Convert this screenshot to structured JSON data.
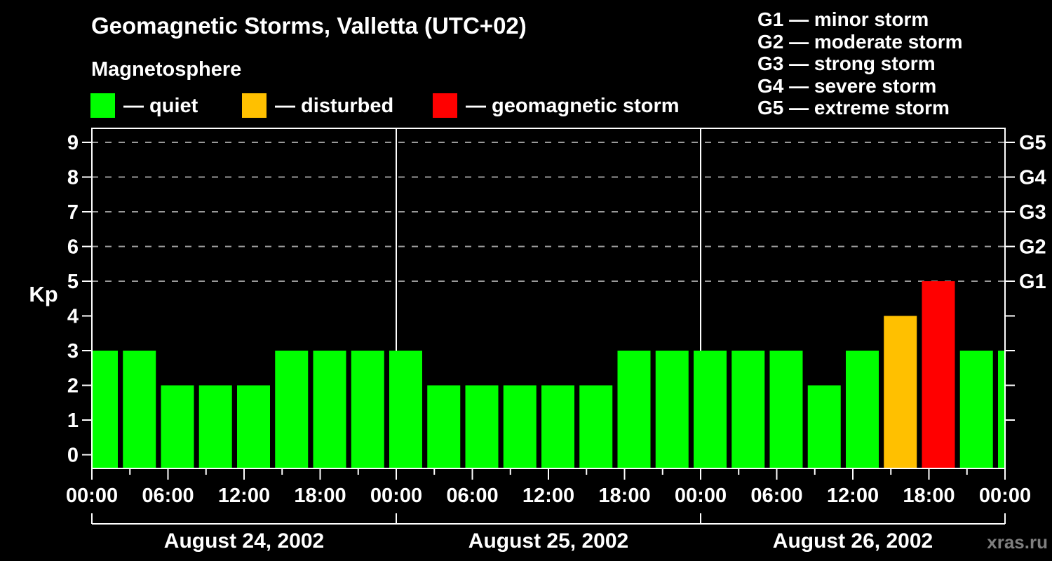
{
  "title": "Geomagnetic Storms, Valletta (UTC+02)",
  "legend": {
    "heading": "Magnetosphere",
    "items": [
      {
        "name": "quiet",
        "label": "— quiet",
        "color": "#00ff00"
      },
      {
        "name": "disturbed",
        "label": "— disturbed",
        "color": "#ffc000"
      },
      {
        "name": "storm",
        "label": "— geomagnetic storm",
        "color": "#ff0000"
      }
    ]
  },
  "g_legend": [
    "G1 — minor storm",
    "G2 — moderate storm",
    "G3 — strong storm",
    "G4 — severe storm",
    "G5 — extreme storm"
  ],
  "watermark": "xras.ru",
  "chart_data": {
    "type": "bar",
    "title": "Geomagnetic Storms, Valletta (UTC+02)",
    "xlabel": "",
    "ylabel": "Kp",
    "ylim": [
      0,
      9
    ],
    "yticks": [
      0,
      1,
      2,
      3,
      4,
      5,
      6,
      7,
      8,
      9
    ],
    "grid_dashed_at_kp": [
      5,
      6,
      7,
      8,
      9
    ],
    "right_axis_labels": [
      {
        "kp": 5,
        "label": "G1"
      },
      {
        "kp": 6,
        "label": "G2"
      },
      {
        "kp": 7,
        "label": "G3"
      },
      {
        "kp": 8,
        "label": "G4"
      },
      {
        "kp": 9,
        "label": "G5"
      }
    ],
    "hours_per_bar": 3,
    "time_tick_labels": [
      "00:00",
      "06:00",
      "12:00",
      "18:00"
    ],
    "days": [
      {
        "date": "August 24, 2002",
        "values": [
          3,
          3,
          2,
          2,
          2,
          3,
          3,
          3
        ]
      },
      {
        "date": "August 25, 2002",
        "values": [
          3,
          2,
          2,
          2,
          2,
          2,
          3,
          3
        ]
      },
      {
        "date": "August 26, 2002",
        "values": [
          3,
          3,
          3,
          2,
          3,
          4,
          5,
          3
        ]
      }
    ],
    "partial_next_bar_value": 3,
    "color_rules": {
      "quiet_max_kp": 3,
      "disturbed_max_kp": 4,
      "quiet_color": "#00ff00",
      "disturbed_color": "#ffc000",
      "storm_color": "#ff0000"
    },
    "legend_position": "top",
    "grid": "dashed horizontal lines at Kp 5-9 only",
    "background": "#000000"
  }
}
